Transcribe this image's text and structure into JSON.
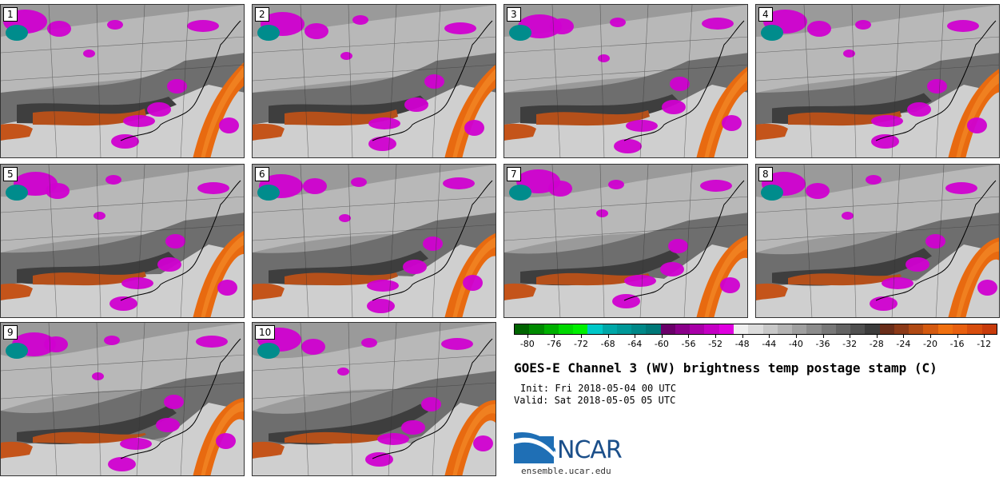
{
  "panels": [
    {
      "label": "1"
    },
    {
      "label": "2"
    },
    {
      "label": "3"
    },
    {
      "label": "4"
    },
    {
      "label": "5"
    },
    {
      "label": "6"
    },
    {
      "label": "7"
    },
    {
      "label": "8"
    },
    {
      "label": "9"
    },
    {
      "label": "10"
    }
  ],
  "colorbar": {
    "colors": [
      "#006400",
      "#008a00",
      "#00b000",
      "#00d800",
      "#00f000",
      "#00c8c8",
      "#00a8a8",
      "#009898",
      "#008888",
      "#007878",
      "#6a006a",
      "#8a008a",
      "#a800a8",
      "#c400c4",
      "#e000e0",
      "#f0f0f0",
      "#dcdcdc",
      "#c8c8c8",
      "#b4b4b4",
      "#a0a0a0",
      "#8c8c8c",
      "#787878",
      "#646464",
      "#505050",
      "#3c3c3c",
      "#6a2e1a",
      "#8c3a18",
      "#b04a14",
      "#d45a10",
      "#f07010",
      "#e86010",
      "#d84e0e",
      "#c83c0c"
    ],
    "tick_labels": [
      "-80",
      "-76",
      "-72",
      "-68",
      "-64",
      "-60",
      "-56",
      "-52",
      "-48",
      "-44",
      "-40",
      "-36",
      "-32",
      "-28",
      "-24",
      "-20",
      "-16",
      "-12"
    ],
    "min": -82,
    "max": -10
  },
  "title": "GOES-E Channel 3 (WV) brightness temp postage stamp (C)",
  "init": "Init: Fri 2018-05-04 00 UTC",
  "valid": "Valid: Sat 2018-05-05 05 UTC",
  "logo": {
    "text": "NCAR",
    "url": "ensemble.ucar.edu"
  }
}
